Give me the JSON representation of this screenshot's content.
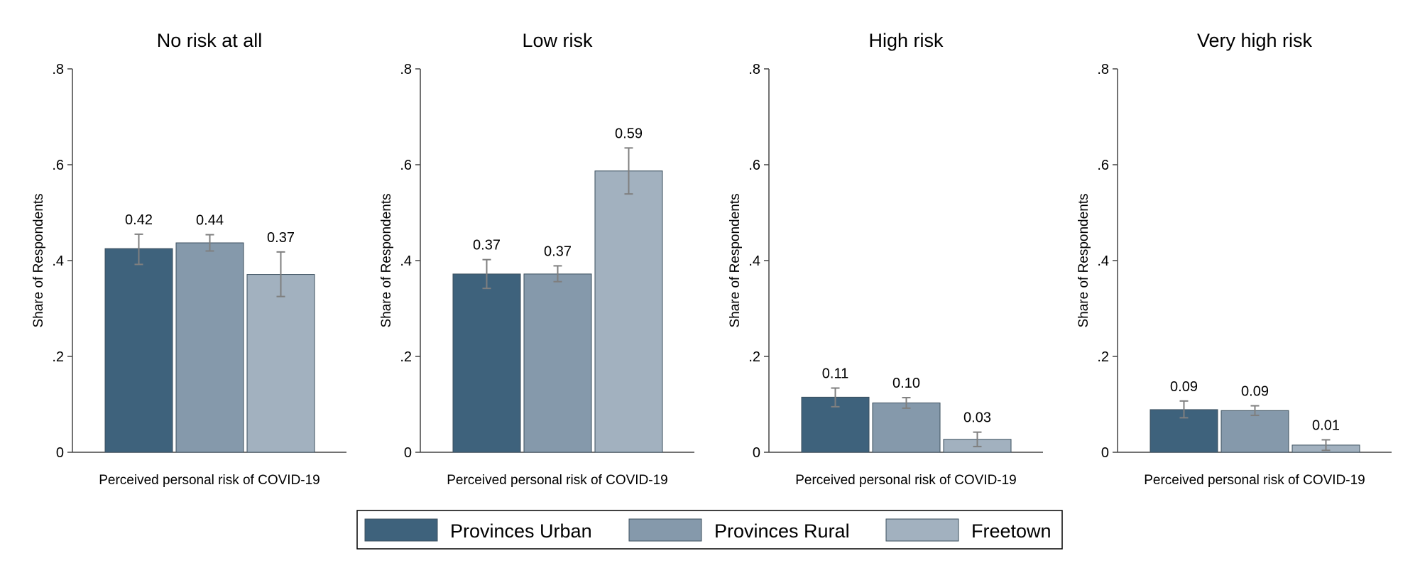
{
  "chart_data": {
    "type": "bar",
    "ylabel": "Share of Respondents",
    "xlabel": "Perceived personal risk of COVID-19",
    "ylim": [
      0,
      0.8
    ],
    "yticks": [
      {
        "value": 0,
        "label": "0"
      },
      {
        "value": 0.2,
        "label": ".2"
      },
      {
        "value": 0.4,
        "label": ".4"
      },
      {
        "value": 0.6,
        "label": ".6"
      },
      {
        "value": 0.8,
        "label": ".8"
      }
    ],
    "grid": false,
    "legend_position": "bottom",
    "series": [
      {
        "name": "Provinces Urban",
        "color": "#3e627c"
      },
      {
        "name": "Provinces Rural",
        "color": "#8599ab"
      },
      {
        "name": "Freetown",
        "color": "#a2b1bf"
      }
    ],
    "panels": [
      {
        "title": "No risk at all",
        "bars": [
          {
            "value": 0.425,
            "label": "0.42",
            "ci": [
              0.392,
              0.455
            ]
          },
          {
            "value": 0.437,
            "label": "0.44",
            "ci": [
              0.42,
              0.454
            ]
          },
          {
            "value": 0.371,
            "label": "0.37",
            "ci": [
              0.325,
              0.418
            ]
          }
        ]
      },
      {
        "title": "Low risk",
        "bars": [
          {
            "value": 0.372,
            "label": "0.37",
            "ci": [
              0.342,
              0.402
            ]
          },
          {
            "value": 0.372,
            "label": "0.37",
            "ci": [
              0.356,
              0.389
            ]
          },
          {
            "value": 0.587,
            "label": "0.59",
            "ci": [
              0.539,
              0.635
            ]
          }
        ]
      },
      {
        "title": "High risk",
        "bars": [
          {
            "value": 0.115,
            "label": "0.11",
            "ci": [
              0.095,
              0.134
            ]
          },
          {
            "value": 0.103,
            "label": "0.10",
            "ci": [
              0.092,
              0.114
            ]
          },
          {
            "value": 0.027,
            "label": "0.03",
            "ci": [
              0.012,
              0.042
            ]
          }
        ]
      },
      {
        "title": "Very high risk",
        "bars": [
          {
            "value": 0.089,
            "label": "0.09",
            "ci": [
              0.072,
              0.107
            ]
          },
          {
            "value": 0.087,
            "label": "0.09",
            "ci": [
              0.077,
              0.097
            ]
          },
          {
            "value": 0.015,
            "label": "0.01",
            "ci": [
              0.004,
              0.026
            ]
          }
        ]
      }
    ]
  }
}
